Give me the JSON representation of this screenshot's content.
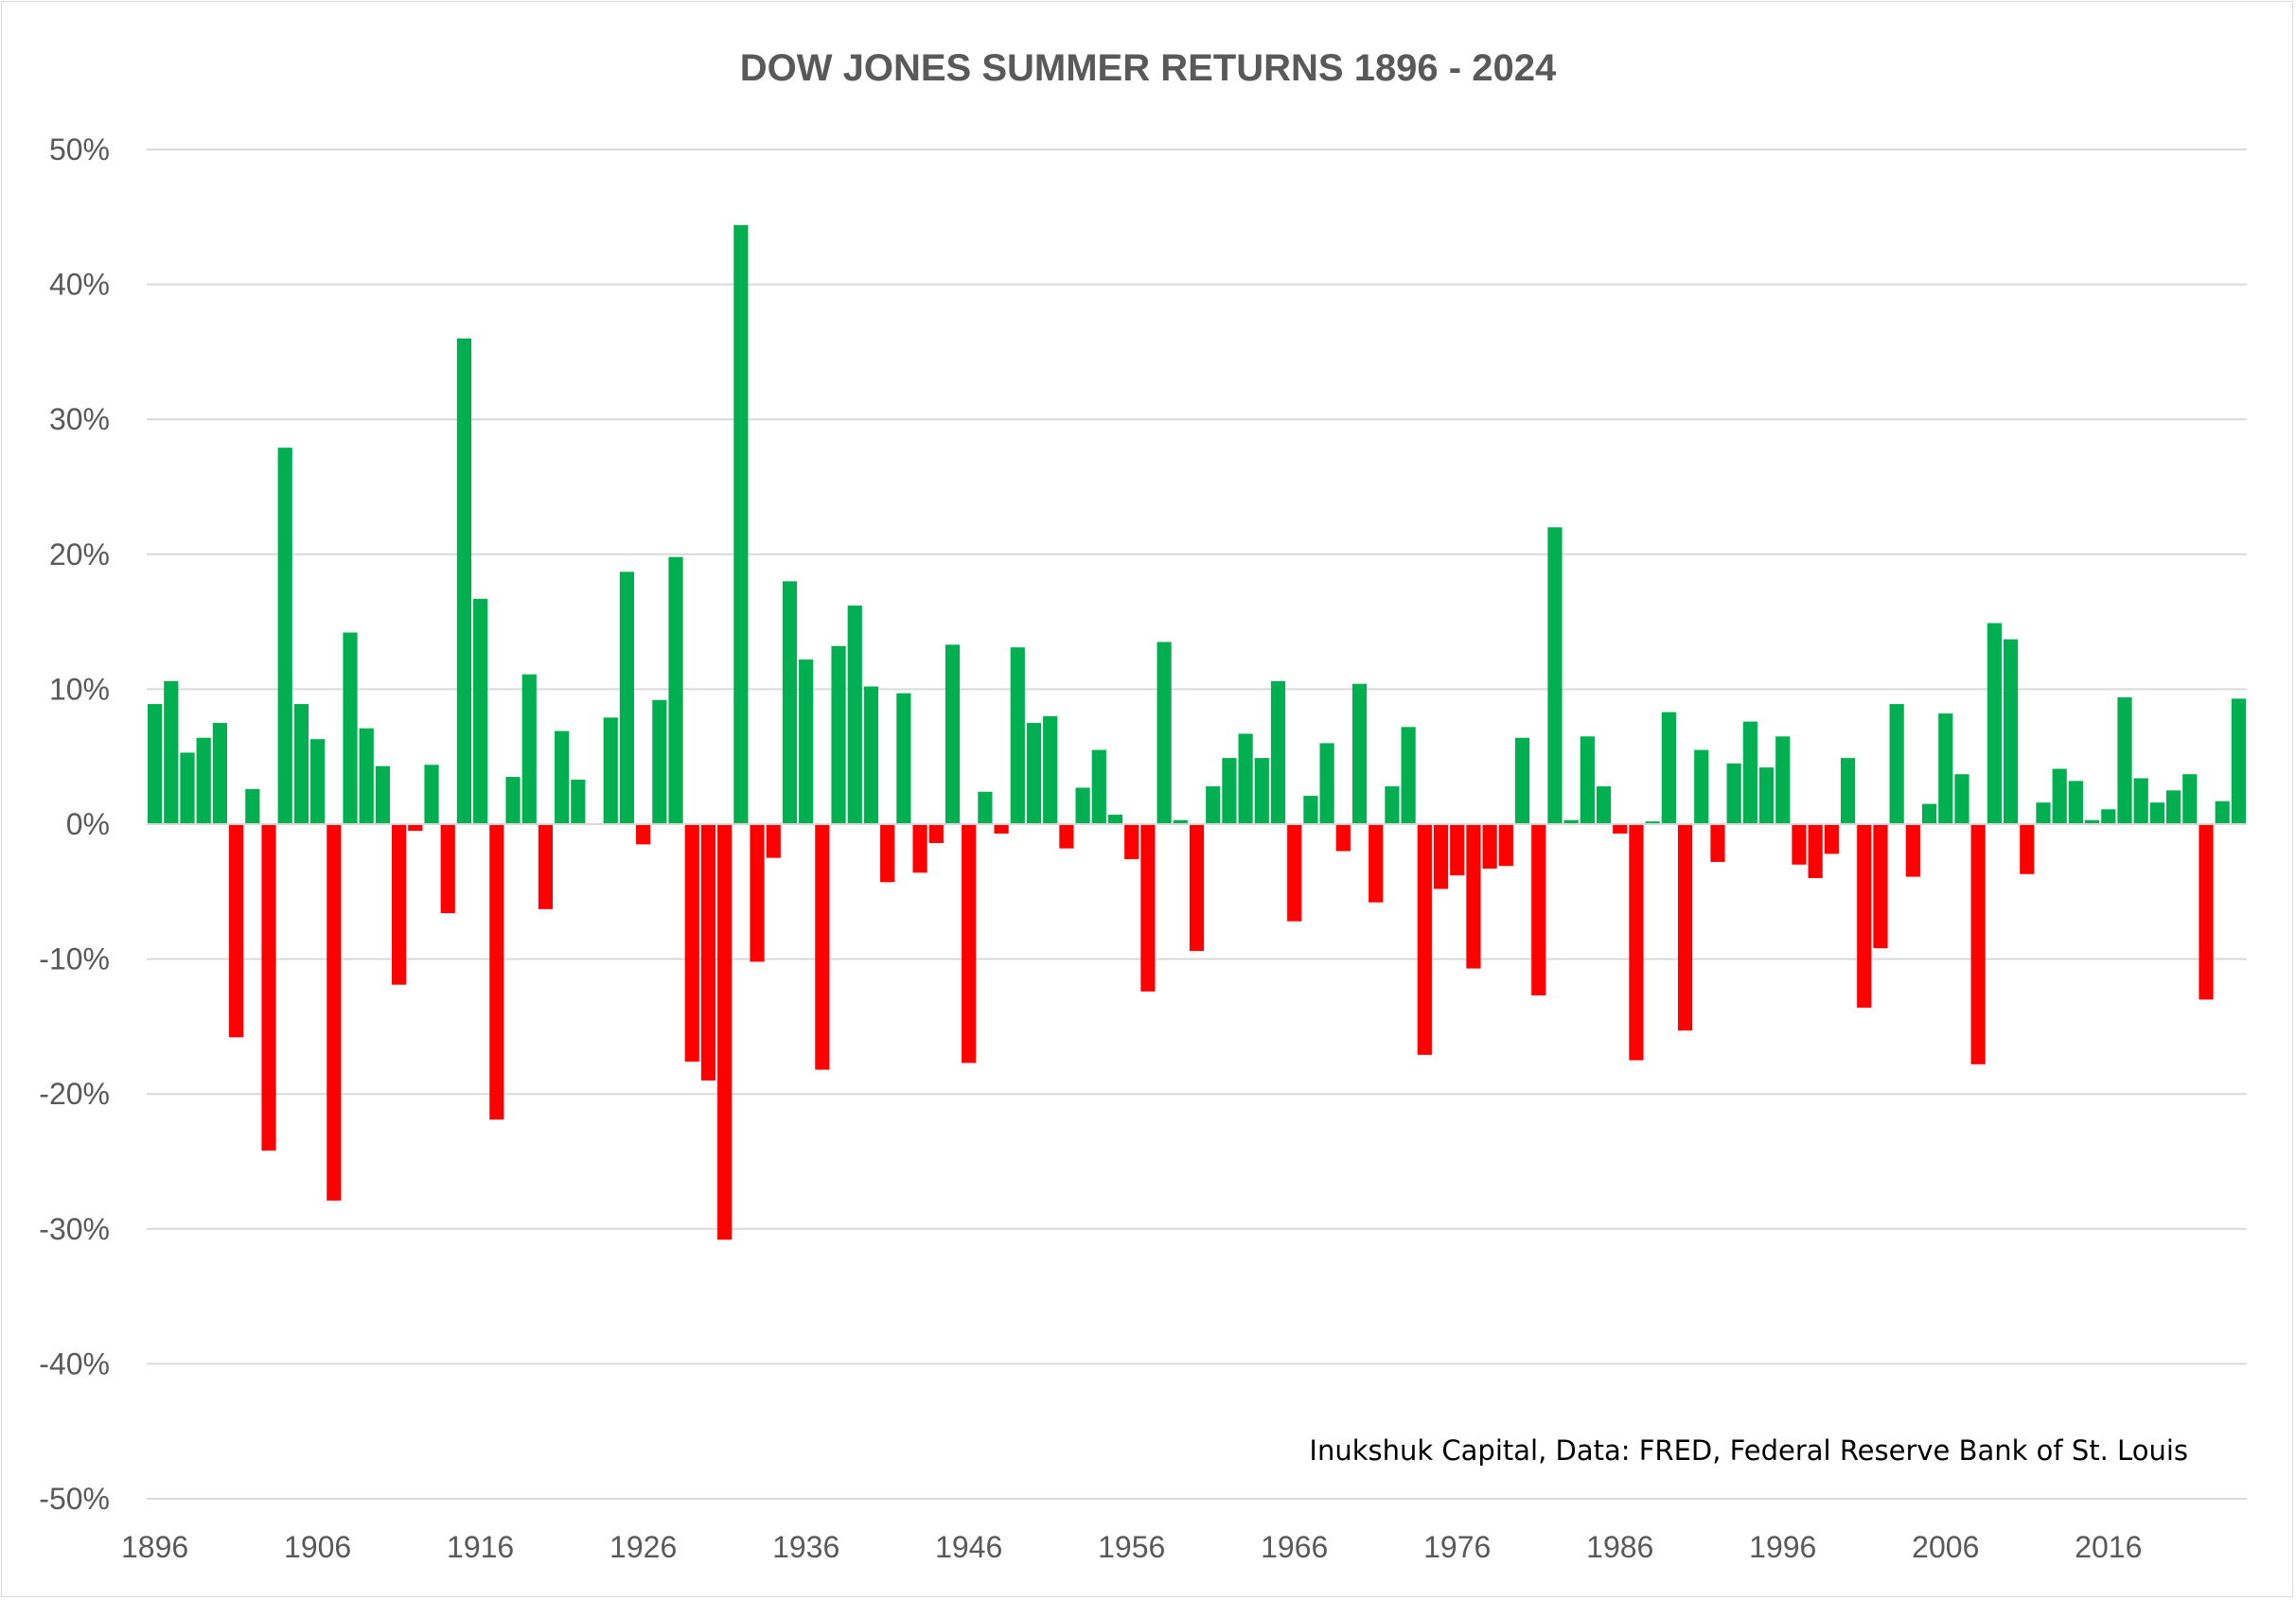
{
  "chart_data": {
    "type": "bar",
    "title": "DOW JONES SUMMER  RETURNS 1896 - 2024",
    "source_note": "Inukshuk Capital, Data: FRED, Federal Reserve Bank of St. Louis",
    "xlabel": "",
    "ylabel": "",
    "ylim": [
      -50,
      50
    ],
    "y_ticks": [
      50,
      40,
      30,
      20,
      10,
      0,
      -10,
      -20,
      -30,
      -40,
      -50
    ],
    "y_tick_labels": [
      "50%",
      "40%",
      "30%",
      "20%",
      "10%",
      "0%",
      "-10%",
      "-20%",
      "-30%",
      "-40%",
      "-50%"
    ],
    "x_tick_labels": [
      "1896",
      "1906",
      "1916",
      "1926",
      "1936",
      "1946",
      "1956",
      "1966",
      "1976",
      "1986",
      "1996",
      "2006",
      "2016"
    ],
    "x_tick_years": [
      1896,
      1906,
      1916,
      1926,
      1936,
      1946,
      1956,
      1966,
      1976,
      1986,
      1996,
      2006,
      2016
    ],
    "grid": true,
    "colors": {
      "positive": "#00b050",
      "negative": "#ff0000",
      "grid": "#d9d9d9",
      "text": "#595959"
    },
    "years": [
      1896,
      1897,
      1898,
      1899,
      1900,
      1901,
      1902,
      1903,
      1904,
      1905,
      1906,
      1907,
      1908,
      1909,
      1910,
      1911,
      1912,
      1913,
      1914,
      1915,
      1916,
      1917,
      1918,
      1919,
      1920,
      1921,
      1922,
      1923,
      1924,
      1925,
      1926,
      1927,
      1928,
      1929,
      1930,
      1931,
      1932,
      1933,
      1934,
      1935,
      1936,
      1937,
      1938,
      1939,
      1940,
      1941,
      1942,
      1943,
      1944,
      1945,
      1946,
      1947,
      1948,
      1949,
      1950,
      1951,
      1952,
      1953,
      1954,
      1955,
      1956,
      1957,
      1958,
      1959,
      1960,
      1961,
      1962,
      1963,
      1964,
      1965,
      1966,
      1967,
      1968,
      1969,
      1970,
      1971,
      1972,
      1973,
      1974,
      1975,
      1976,
      1977,
      1978,
      1979,
      1980,
      1981,
      1982,
      1983,
      1984,
      1985,
      1986,
      1987,
      1988,
      1989,
      1990,
      1991,
      1992,
      1993,
      1994,
      1995,
      1996,
      1997,
      1998,
      1999,
      2000,
      2001,
      2002,
      2003,
      2004,
      2005,
      2006,
      2007,
      2008,
      2009,
      2010,
      2011,
      2012,
      2013,
      2014,
      2015,
      2016,
      2017,
      2018,
      2019,
      2020,
      2021,
      2022,
      2023,
      2024
    ],
    "values": [
      8.9,
      10.6,
      5.3,
      6.4,
      7.5,
      -15.8,
      2.6,
      -24.2,
      27.9,
      8.9,
      6.3,
      -27.9,
      14.2,
      7.1,
      4.3,
      -11.9,
      -0.5,
      4.4,
      -6.6,
      36.0,
      16.7,
      -21.9,
      3.5,
      11.1,
      -6.3,
      6.9,
      3.3,
      0,
      7.9,
      18.7,
      -1.5,
      9.2,
      19.8,
      -17.6,
      -19.0,
      -30.8,
      44.4,
      -10.2,
      -2.5,
      18.0,
      12.2,
      -18.2,
      13.2,
      16.2,
      10.2,
      -4.3,
      9.7,
      -3.6,
      -1.4,
      13.3,
      -17.7,
      2.4,
      -0.7,
      13.1,
      7.5,
      8.0,
      -1.8,
      2.7,
      5.5,
      0.7,
      -2.6,
      -12.4,
      13.5,
      0.3,
      -9.4,
      2.8,
      4.9,
      6.7,
      4.9,
      10.6,
      -7.2,
      2.1,
      6.0,
      -2.0,
      10.4,
      -5.8,
      2.8,
      7.2,
      -17.1,
      -4.8,
      -3.8,
      -10.7,
      -3.3,
      -3.1,
      6.4,
      -12.7,
      22.0,
      0.3,
      6.5,
      2.8,
      -0.7,
      -17.5,
      0.2,
      8.3,
      -15.3,
      5.5,
      -2.8,
      4.5,
      7.6,
      4.2,
      6.5,
      -3.0,
      -4.0,
      -2.2,
      4.9,
      -13.6,
      -9.2,
      8.9,
      -3.9,
      1.5,
      8.2,
      3.7,
      -17.8,
      14.9,
      13.7,
      -3.7,
      1.6,
      4.1,
      3.2,
      0.3,
      1.1,
      9.4,
      3.4,
      1.6,
      2.5,
      3.7,
      -13.0,
      1.7,
      9.3
    ]
  }
}
